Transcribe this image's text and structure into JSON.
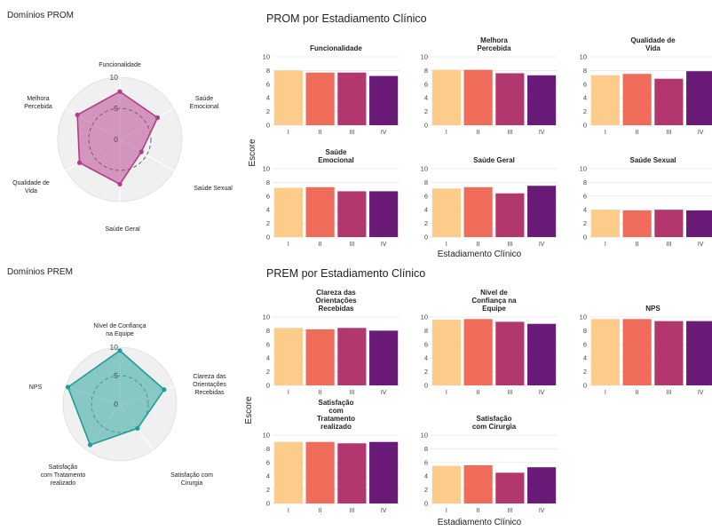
{
  "colors": {
    "stage_I": "#FDCB8A",
    "stage_II": "#F06C5A",
    "stage_III": "#B2376F",
    "stage_IV": "#6A1B78",
    "prom_radar": "#B43B8A",
    "prem_radar": "#1E9E97",
    "radar_bg": "#F0F0F0",
    "dashed_ring_prom": "#444444",
    "dashed_ring_prem": "#2E8B86"
  },
  "prom_radar": {
    "title": "Domínios PROM",
    "axes": [
      "Funcionalidade",
      "Saúde\nEmocional",
      "Saúde Sexual",
      "Saúde Geral",
      "Qualidade de\nVida",
      "Melhora\nPercebida"
    ],
    "values": [
      7.7,
      7.0,
      4.0,
      7.2,
      7.5,
      7.9
    ],
    "ticks": [
      "10",
      "5",
      "0"
    ]
  },
  "prem_radar": {
    "title": "Domínios PREM",
    "axes": [
      "Nível de Confiança\nna Equipe",
      "Clareza das\nOrientações\nRecebidas",
      "Satisfação com\nCirurgia",
      "Satisfação\ncom Tratamento\nrealizado",
      "NPS"
    ],
    "values": [
      9.4,
      8.2,
      5.3,
      8.9,
      9.6
    ],
    "ticks": [
      "10",
      "5",
      "0"
    ]
  },
  "chart_data": [
    {
      "type": "bar",
      "title": "PROM por Estadiamento Clínico",
      "xlabel": "Estadiamento Clínico",
      "ylabel": "Escore",
      "categories": [
        "I",
        "II",
        "III",
        "IV"
      ],
      "ylim": [
        0,
        10
      ],
      "yticks": [
        "0",
        "2",
        "4",
        "6",
        "8",
        "10"
      ],
      "panels": [
        {
          "name": "Funcionalidade",
          "values": [
            8.0,
            7.7,
            7.7,
            7.2
          ]
        },
        {
          "name": "Melhora\nPercebida",
          "values": [
            8.1,
            8.1,
            7.6,
            7.3
          ]
        },
        {
          "name": "Qualidade de\nVida",
          "values": [
            7.3,
            7.5,
            6.8,
            7.9
          ]
        },
        {
          "name": "Saúde\nEmocional",
          "values": [
            7.2,
            7.3,
            6.7,
            6.7
          ]
        },
        {
          "name": "Saúde Geral",
          "values": [
            7.1,
            7.3,
            6.4,
            7.5
          ]
        },
        {
          "name": "Saúde Sexual",
          "values": [
            4.0,
            3.9,
            4.0,
            3.9
          ]
        }
      ]
    },
    {
      "type": "bar",
      "title": "PREM por Estadiamento Clínico",
      "xlabel": "Estadiamento Clínico",
      "ylabel": "Escore",
      "categories": [
        "I",
        "II",
        "III",
        "IV"
      ],
      "ylim": [
        0,
        10
      ],
      "yticks": [
        "0",
        "2",
        "4",
        "6",
        "8",
        "10"
      ],
      "panels": [
        {
          "name": "Clareza das\nOrientações\nRecebidas",
          "values": [
            8.4,
            8.2,
            8.4,
            8.0
          ]
        },
        {
          "name": "Nível de\nConfiança na\nEquipe",
          "values": [
            9.6,
            9.7,
            9.3,
            9.0
          ]
        },
        {
          "name": "NPS",
          "values": [
            9.7,
            9.7,
            9.4,
            9.4
          ]
        },
        {
          "name": "Satisfação\ncom\nTratamento\nrealizado",
          "values": [
            9.0,
            9.0,
            8.8,
            9.0
          ]
        },
        {
          "name": "Satisfação\ncom Cirurgia",
          "values": [
            5.5,
            5.6,
            4.5,
            5.3
          ]
        }
      ]
    }
  ]
}
